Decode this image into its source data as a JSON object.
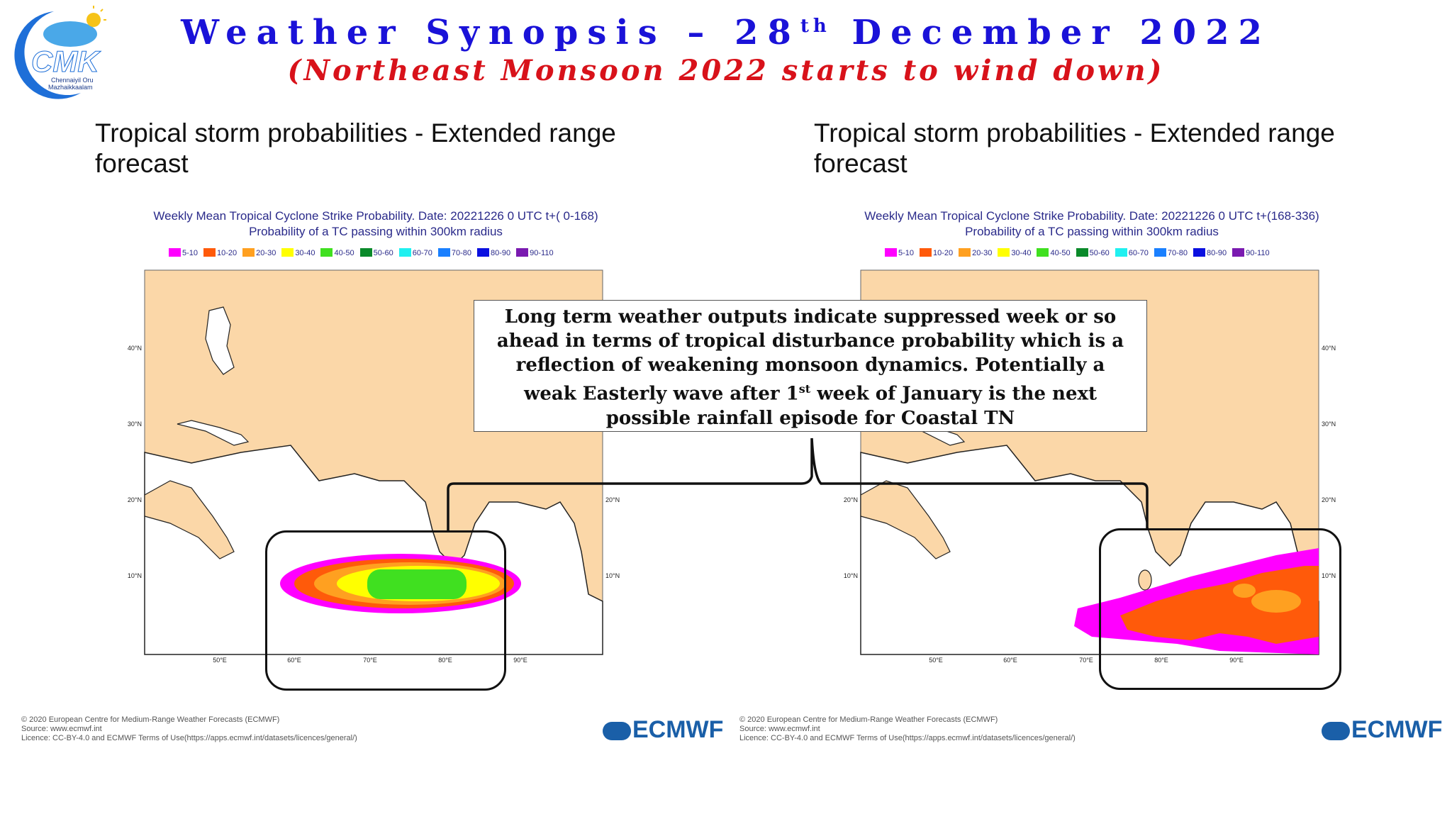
{
  "logo": {
    "text": "CMK",
    "caption_line1": "Chennaiyil Oru",
    "caption_line2": "Mazhaikkaalam"
  },
  "header": {
    "title_pre": "Weather Synopsis – 28",
    "title_sup": "th",
    "title_post": " December 2022",
    "subtitle": "(Northeast Monsoon 2022 starts to wind down)"
  },
  "left": {
    "section_title": "Tropical storm probabilities - Extended range forecast",
    "map_title_line1": "Weekly Mean Tropical Cyclone Strike Probability. Date: 20221226  0 UTC   t+(  0-168)",
    "map_title_line2": "Probability of a TC passing within  300km radius"
  },
  "right": {
    "section_title": "Tropical storm probabilities - Extended range forecast",
    "map_title_line1": "Weekly Mean Tropical Cyclone Strike Probability. Date: 20221226  0 UTC   t+(168-336)",
    "map_title_line2": "Probability of a TC passing within  300km radius"
  },
  "legend": [
    {
      "label": "5-10",
      "color": "#ff00ff"
    },
    {
      "label": "10-20",
      "color": "#ff5a0a"
    },
    {
      "label": "20-30",
      "color": "#ffa020"
    },
    {
      "label": "30-40",
      "color": "#ffff00"
    },
    {
      "label": "40-50",
      "color": "#40e020"
    },
    {
      "label": "50-60",
      "color": "#0a8a2a"
    },
    {
      "label": "60-70",
      "color": "#20f0f0"
    },
    {
      "label": "70-80",
      "color": "#1a80ff"
    },
    {
      "label": "80-90",
      "color": "#0a10e0"
    },
    {
      "label": "90-110",
      "color": "#7a1ab0"
    }
  ],
  "map_labels": {
    "lon": [
      "50°E",
      "60°E",
      "70°E",
      "80°E",
      "90°E"
    ],
    "lat": [
      "40°N",
      "30°N",
      "20°N",
      "10°N"
    ]
  },
  "credits": {
    "line1": "© 2020 European Centre for Medium-Range Weather Forecasts (ECMWF)",
    "line2": "Source: www.ecmwf.int",
    "line3": "Licence: CC-BY-4.0 and ECMWF Terms of Use(https://apps.ecmwf.int/datasets/licences/general/)",
    "brand": "ECMWF"
  },
  "callout": {
    "line1": "Long term weather outputs indicate suppressed week or so",
    "line2": "ahead in terms of tropical disturbance probability which is a",
    "line3": "reflection of weakening monsoon dynamics. Potentially a",
    "line4_pre": "weak Easterly wave after 1",
    "line4_sup": "st",
    "line4_post": " week of January is the next",
    "line5": "possible rainfall episode for Coastal TN"
  },
  "colors": {
    "title": "#1a12d8",
    "subtitle": "#d8121a",
    "land": "#fbd7a8",
    "ecmwf": "#1a5fa8"
  }
}
